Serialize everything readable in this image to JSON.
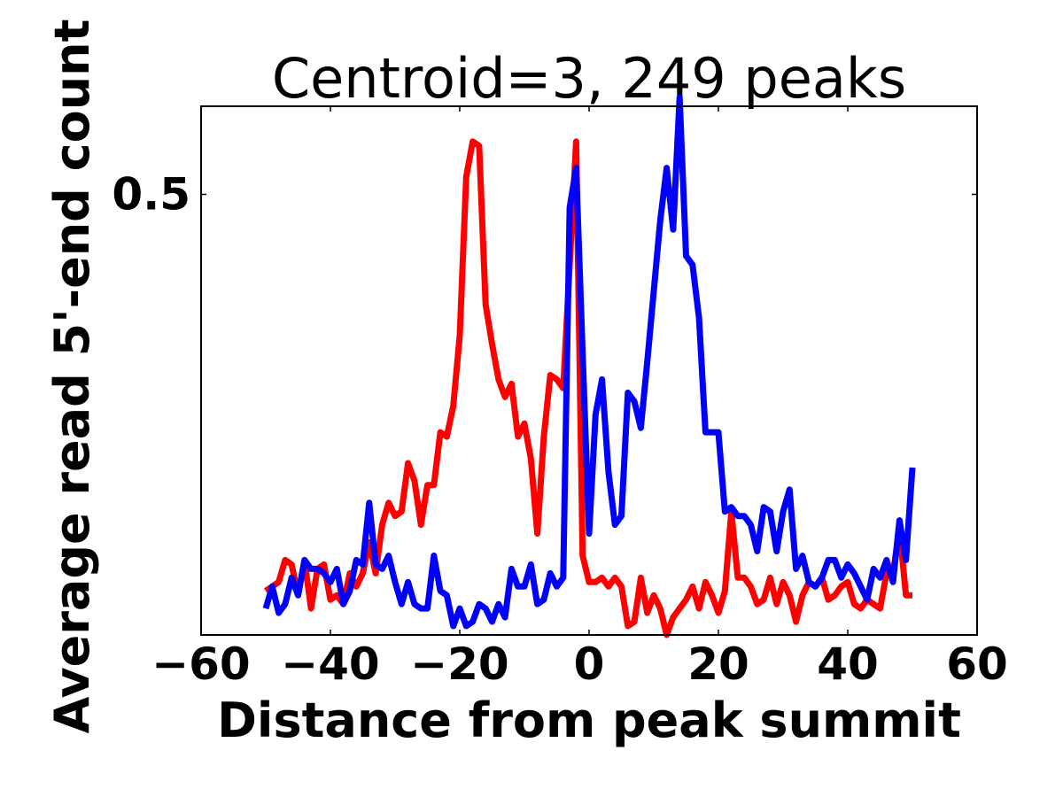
{
  "chart_data": {
    "type": "line",
    "title": "Centroid=3, 249 peaks",
    "xlabel": "Distance from peak summit",
    "ylabel": "Average read 5'-end count",
    "xlim": [
      -60,
      60
    ],
    "ylim": [
      0.0,
      0.6
    ],
    "xticks": [
      -60,
      -40,
      -20,
      0,
      20,
      40,
      60
    ],
    "xtick_labels": [
      "−60",
      "−40",
      "−20",
      "0",
      "20",
      "40",
      "60"
    ],
    "yticks": [
      0.5
    ],
    "ytick_labels": [
      "0.5"
    ],
    "grid": false,
    "legend": "none",
    "x": [
      -50,
      -49,
      -48,
      -47,
      -46,
      -45,
      -44,
      -43,
      -42,
      -41,
      -40,
      -39,
      -38,
      -37,
      -36,
      -35,
      -34,
      -33,
      -32,
      -31,
      -30,
      -29,
      -28,
      -27,
      -26,
      -25,
      -24,
      -23,
      -22,
      -21,
      -20,
      -19,
      -18,
      -17,
      -16,
      -15,
      -14,
      -13,
      -12,
      -11,
      -10,
      -9,
      -8,
      -7,
      -6,
      -5,
      -4,
      -3,
      -2,
      -1,
      0,
      1,
      2,
      3,
      4,
      5,
      6,
      7,
      8,
      9,
      10,
      11,
      12,
      13,
      14,
      15,
      16,
      17,
      18,
      19,
      20,
      21,
      22,
      23,
      24,
      25,
      26,
      27,
      28,
      29,
      30,
      31,
      32,
      33,
      34,
      35,
      36,
      37,
      38,
      39,
      40,
      41,
      42,
      43,
      44,
      45,
      46,
      47,
      48,
      49,
      50
    ],
    "series": [
      {
        "color": "#ff0000",
        "values": [
          0.05,
          0.055,
          0.06,
          0.085,
          0.08,
          0.045,
          0.085,
          0.03,
          0.075,
          0.08,
          0.04,
          0.045,
          0.035,
          0.07,
          0.055,
          0.07,
          0.105,
          0.07,
          0.125,
          0.15,
          0.135,
          0.14,
          0.195,
          0.175,
          0.125,
          0.17,
          0.17,
          0.23,
          0.225,
          0.26,
          0.34,
          0.52,
          0.56,
          0.555,
          0.375,
          0.33,
          0.29,
          0.27,
          0.285,
          0.225,
          0.24,
          0.2,
          0.115,
          0.225,
          0.295,
          0.29,
          0.28,
          0.42,
          0.56,
          0.09,
          0.06,
          0.06,
          0.065,
          0.055,
          0.065,
          0.055,
          0.01,
          0.015,
          0.065,
          0.025,
          0.045,
          0.03,
          0.0,
          0.02,
          0.03,
          0.04,
          0.055,
          0.03,
          0.06,
          0.045,
          0.025,
          0.05,
          0.14,
          0.065,
          0.065,
          0.055,
          0.035,
          0.04,
          0.065,
          0.035,
          0.06,
          0.045,
          0.015,
          0.045,
          0.06,
          0.055,
          0.065,
          0.04,
          0.045,
          0.055,
          0.06,
          0.035,
          0.03,
          0.04,
          0.035,
          0.03,
          0.07,
          0.07,
          0.12,
          0.045,
          0.045
        ]
      },
      {
        "color": "#0000ff",
        "values": [
          0.03,
          0.055,
          0.025,
          0.035,
          0.065,
          0.045,
          0.085,
          0.075,
          0.075,
          0.07,
          0.06,
          0.075,
          0.035,
          0.05,
          0.085,
          0.08,
          0.15,
          0.08,
          0.075,
          0.09,
          0.06,
          0.035,
          0.06,
          0.035,
          0.03,
          0.03,
          0.09,
          0.05,
          0.045,
          0.01,
          0.03,
          0.01,
          0.015,
          0.035,
          0.03,
          0.015,
          0.035,
          0.02,
          0.075,
          0.055,
          0.055,
          0.08,
          0.035,
          0.04,
          0.07,
          0.055,
          0.065,
          0.485,
          0.53,
          0.32,
          0.115,
          0.25,
          0.29,
          0.185,
          0.125,
          0.135,
          0.275,
          0.265,
          0.235,
          0.31,
          0.39,
          0.47,
          0.53,
          0.46,
          0.61,
          0.43,
          0.42,
          0.36,
          0.23,
          0.23,
          0.23,
          0.14,
          0.145,
          0.135,
          0.135,
          0.125,
          0.095,
          0.145,
          0.14,
          0.095,
          0.14,
          0.165,
          0.075,
          0.09,
          0.06,
          0.055,
          0.065,
          0.085,
          0.085,
          0.065,
          0.08,
          0.07,
          0.055,
          0.04,
          0.075,
          0.065,
          0.085,
          0.06,
          0.13,
          0.085,
          0.19
        ]
      }
    ]
  }
}
